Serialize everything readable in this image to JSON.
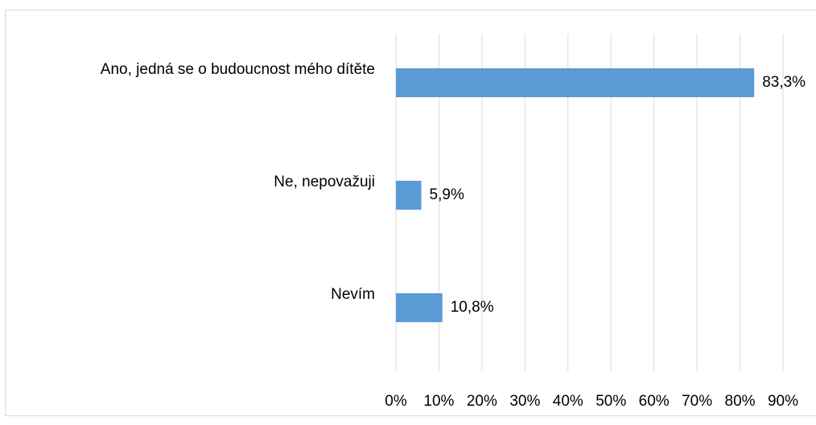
{
  "chart_data": {
    "type": "bar",
    "orientation": "horizontal",
    "categories": [
      "Ano, jedná se o budoucnost mého dítěte",
      "Ne, nepovažuji",
      "Nevím"
    ],
    "values": [
      83.3,
      5.9,
      10.8
    ],
    "value_labels": [
      "83,3%",
      "5,9%",
      "10,8%"
    ],
    "color": "#5b9bd5",
    "xlim": [
      0,
      90
    ],
    "xticks": [
      {
        "value": 0,
        "label": "0%"
      },
      {
        "value": 10,
        "label": "10%"
      },
      {
        "value": 20,
        "label": "20%"
      },
      {
        "value": 30,
        "label": "30%"
      },
      {
        "value": 40,
        "label": "40%"
      },
      {
        "value": 50,
        "label": "50%"
      },
      {
        "value": 60,
        "label": "60%"
      },
      {
        "value": 70,
        "label": "70%"
      },
      {
        "value": 80,
        "label": "80%"
      },
      {
        "value": 90,
        "label": "90%"
      }
    ],
    "grid": true
  }
}
